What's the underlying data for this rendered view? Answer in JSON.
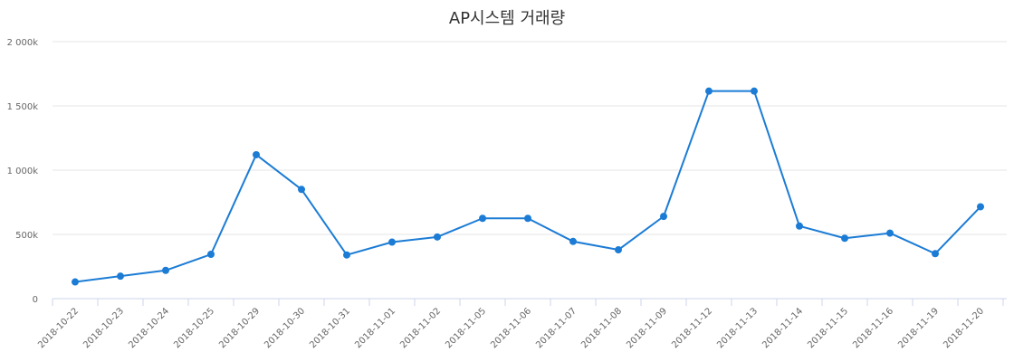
{
  "chart_data": {
    "type": "line",
    "title": "AP시스템 거래량",
    "xlabel": "",
    "ylabel": "",
    "categories": [
      "2018-10-22",
      "2018-10-23",
      "2018-10-24",
      "2018-10-25",
      "2018-10-29",
      "2018-10-30",
      "2018-10-31",
      "2018-11-01",
      "2018-11-02",
      "2018-11-05",
      "2018-11-06",
      "2018-11-07",
      "2018-11-08",
      "2018-11-09",
      "2018-11-12",
      "2018-11-13",
      "2018-11-14",
      "2018-11-15",
      "2018-11-16",
      "2018-11-19",
      "2018-11-20"
    ],
    "series": [
      {
        "values": [
          130000,
          175000,
          220000,
          345000,
          1120000,
          850000,
          340000,
          440000,
          480000,
          625000,
          625000,
          445000,
          380000,
          640000,
          1615000,
          1615000,
          565000,
          470000,
          510000,
          350000,
          715000
        ]
      }
    ],
    "ylim": [
      0,
      2000000
    ],
    "yticks": [
      0,
      500000,
      1000000,
      1500000,
      2000000
    ],
    "ytick_labels": [
      "0",
      "500k",
      "1 000k",
      "1 500k",
      "2 000k"
    ],
    "grid": true,
    "legend": "none",
    "colors": {
      "line": "#1c7cd5",
      "grid": "#e6e6e6",
      "axis": "#ccd6eb"
    }
  }
}
